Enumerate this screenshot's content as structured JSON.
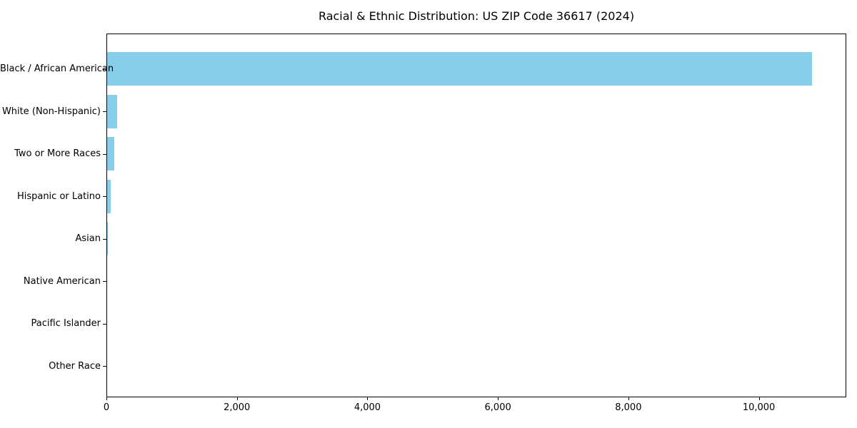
{
  "title": "Racial & Ethnic Distribution: US ZIP Code 36617 (2024)",
  "chart_data": {
    "type": "bar",
    "orientation": "horizontal",
    "title": "Racial & Ethnic Distribution: US ZIP Code 36617 (2024)",
    "categories": [
      "Black / African American",
      "White (Non-Hispanic)",
      "Two or More Races",
      "Hispanic or Latino",
      "Asian",
      "Native American",
      "Pacific Islander",
      "Other Race"
    ],
    "values": [
      10800,
      150,
      105,
      52,
      10,
      0,
      0,
      0
    ],
    "xlabel": "",
    "ylabel": "",
    "xlim": [
      0,
      11340
    ],
    "x_ticks": [
      0,
      2000,
      4000,
      6000,
      8000,
      10000
    ],
    "x_tick_labels": [
      "0",
      "2,000",
      "4,000",
      "6,000",
      "8,000",
      "10,000"
    ],
    "bar_color": "#87CEEB",
    "axis_color": "#000000",
    "grid": false,
    "legend": null
  }
}
